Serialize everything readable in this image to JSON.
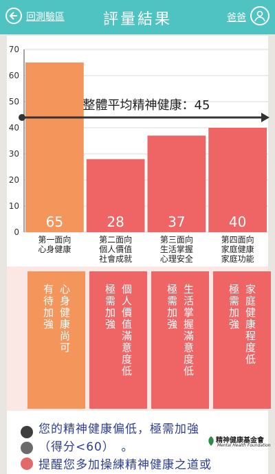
{
  "header": {
    "back_label": "回測驗區",
    "title": "評量結果",
    "user_label": "爸爸"
  },
  "colors": {
    "header": "#4ec3c2",
    "bar_first": "#f4955c",
    "bar": "#ef6464",
    "text_blue": "#2e3e97"
  },
  "chart_data": {
    "type": "bar",
    "categories": [
      [
        "第一面向",
        "心身健康"
      ],
      [
        "第二面向",
        "個人價值",
        "社會成就"
      ],
      [
        "第三面向",
        "生活掌握",
        "心理安全"
      ],
      [
        "第四面向",
        "家庭健康",
        "家庭功能"
      ]
    ],
    "values": [
      65,
      28,
      37,
      40
    ],
    "ylim": [
      0,
      70
    ],
    "yticks": [
      0,
      10,
      20,
      30,
      40,
      50,
      60,
      70
    ],
    "average": {
      "value": 45,
      "label": "整體平均精神健康：45"
    },
    "grid": true
  },
  "cards": [
    {
      "columns": [
        "心身健康尚可",
        "有待加強"
      ]
    },
    {
      "columns": [
        "個人價值滿意度低",
        "極需加強"
      ]
    },
    {
      "columns": [
        "生活掌握滿意度低",
        "極需加強"
      ]
    },
    {
      "columns": [
        "家庭健康程度低",
        "極需加強"
      ]
    }
  ],
  "message": {
    "line1": "您的精神健康偏低，極需加強",
    "line2": "（得分<60）　。",
    "line3": "提醒您多加操練精神健康之道或"
  },
  "foundation": {
    "name": "精神健康基金會",
    "name_en": "Mental Health Foundation"
  }
}
